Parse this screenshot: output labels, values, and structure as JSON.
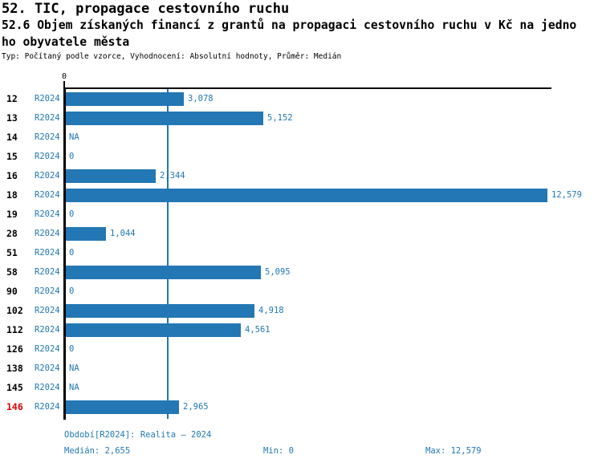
{
  "header": {
    "title": "52. TIC, propagace cestovního ruchu",
    "subtitle_line1": "52.6 Objem získaných financí z grantů na propagaci cestovního ruchu v Kč na jedno",
    "subtitle_line2": "ho obyvatele města",
    "meta": "Typ: Počítaný podle vzorce, Vyhodnocení: Absolutní hodnoty, Průměr: Medián"
  },
  "chart_data": {
    "type": "bar",
    "orientation": "horizontal",
    "x_axis": {
      "tick_label": "0",
      "min": 0,
      "max": 12579
    },
    "median_line_value": 2655,
    "rows": [
      {
        "id": "12",
        "period": "R2024",
        "value": 3078,
        "label": "3,078"
      },
      {
        "id": "13",
        "period": "R2024",
        "value": 5152,
        "label": "5,152"
      },
      {
        "id": "14",
        "period": "R2024",
        "value": null,
        "label": "NA"
      },
      {
        "id": "15",
        "period": "R2024",
        "value": 0,
        "label": "0"
      },
      {
        "id": "16",
        "period": "R2024",
        "value": 2344,
        "label": "2,344"
      },
      {
        "id": "18",
        "period": "R2024",
        "value": 12579,
        "label": "12,579"
      },
      {
        "id": "19",
        "period": "R2024",
        "value": 0,
        "label": "0"
      },
      {
        "id": "28",
        "period": "R2024",
        "value": 1044,
        "label": "1,044"
      },
      {
        "id": "51",
        "period": "R2024",
        "value": 0,
        "label": "0"
      },
      {
        "id": "58",
        "period": "R2024",
        "value": 5095,
        "label": "5,095"
      },
      {
        "id": "90",
        "period": "R2024",
        "value": 0,
        "label": "0"
      },
      {
        "id": "102",
        "period": "R2024",
        "value": 4918,
        "label": "4,918"
      },
      {
        "id": "112",
        "period": "R2024",
        "value": 4561,
        "label": "4,561"
      },
      {
        "id": "126",
        "period": "R2024",
        "value": 0,
        "label": "0"
      },
      {
        "id": "138",
        "period": "R2024",
        "value": null,
        "label": "NA"
      },
      {
        "id": "145",
        "period": "R2024",
        "value": null,
        "label": "NA"
      },
      {
        "id": "146",
        "period": "R2024",
        "value": 2965,
        "label": "2,965",
        "highlighted": true
      }
    ],
    "highlighted_row_id": "146"
  },
  "footer": {
    "period": "Období[R2024]: Realita – 2024",
    "median": "Medián: 2,655",
    "min": "Min: 0",
    "max": "Max: 12,579"
  },
  "colors": {
    "bar": "#2277b4",
    "accent_text": "#1f77b4",
    "highlight": "#dd0000",
    "axis": "#000000"
  }
}
